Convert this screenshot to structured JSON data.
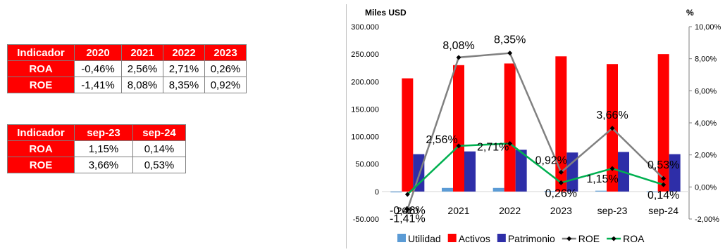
{
  "table_annual": {
    "headers": [
      "Indicador",
      "2020",
      "2021",
      "2022",
      "2023"
    ],
    "rows": [
      {
        "label": "ROA",
        "values": [
          "-0,46%",
          "2,56%",
          "2,71%",
          "0,26%"
        ]
      },
      {
        "label": "ROE",
        "values": [
          "-1,41%",
          "8,08%",
          "8,35%",
          "0,92%"
        ]
      }
    ]
  },
  "table_sep": {
    "headers": [
      "Indicador",
      "sep-23",
      "sep-24"
    ],
    "rows": [
      {
        "label": "ROA",
        "values": [
          "1,15%",
          "0,14%"
        ]
      },
      {
        "label": "ROE",
        "values": [
          "3,66%",
          "0,53%"
        ]
      }
    ]
  },
  "chart_data": {
    "type": "bar",
    "ylabel_left": "Miles USD",
    "ylabel_right": "%",
    "categories": [
      "2020",
      "2021",
      "2022",
      "2023",
      "sep-23",
      "sep-24"
    ],
    "left_ticks": [
      "-50.000",
      "0",
      "50.000",
      "100.000",
      "150.000",
      "200.000",
      "250.000",
      "300.000"
    ],
    "left_tick_values": [
      -50000,
      0,
      50000,
      100000,
      150000,
      200000,
      250000,
      300000
    ],
    "right_ticks": [
      "-2,00%",
      "0,00%",
      "2,00%",
      "4,00%",
      "6,00%",
      "8,00%",
      "10,00%"
    ],
    "right_tick_values": [
      -2,
      0,
      2,
      4,
      6,
      8,
      10
    ],
    "ylim_left": [
      -50000,
      300000
    ],
    "ylim_right": [
      -2,
      10
    ],
    "series": [
      {
        "name": "Utilidad",
        "kind": "bar",
        "color": "#5b9bd5",
        "values": [
          -1500,
          6500,
          6500,
          700,
          1500,
          200
        ]
      },
      {
        "name": "Activos",
        "kind": "bar",
        "color": "#ff0000",
        "values": [
          206000,
          230000,
          233000,
          246000,
          232000,
          250000
        ]
      },
      {
        "name": "Patrimonio",
        "kind": "bar",
        "color": "#2e2ea8",
        "values": [
          68000,
          73000,
          76000,
          71000,
          72000,
          68000
        ]
      },
      {
        "name": "ROE",
        "kind": "line",
        "axis": "right",
        "color": "#808080",
        "values": [
          -1.41,
          8.08,
          8.35,
          0.92,
          3.66,
          0.53
        ],
        "labels": [
          "-1,41%",
          "8,08%",
          "8,35%",
          "0,92%",
          "3,66%",
          "0,53%"
        ]
      },
      {
        "name": "ROA",
        "kind": "line",
        "axis": "right",
        "color": "#00b050",
        "values": [
          -0.46,
          2.56,
          2.71,
          0.26,
          1.15,
          0.14
        ],
        "labels": [
          "-0,46%",
          "2,56%",
          "2,71%",
          "0,26%",
          "1,15%",
          "0,14%"
        ]
      }
    ],
    "legend_position": "bottom"
  }
}
